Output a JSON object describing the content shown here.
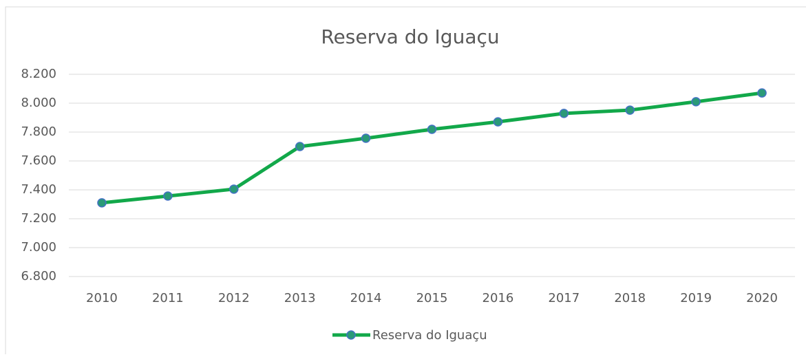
{
  "chart_data": {
    "type": "line",
    "title": "Reserva do Iguaçu",
    "categories": [
      "2010",
      "2011",
      "2012",
      "2013",
      "2014",
      "2015",
      "2016",
      "2017",
      "2018",
      "2019",
      "2020"
    ],
    "series": [
      {
        "name": "Reserva do Iguaçu",
        "color": "#12a84a",
        "marker_color": "#2a9a78",
        "marker_edge": "#4472c4",
        "values": [
          7310,
          7357,
          7405,
          7700,
          7757,
          7819,
          7871,
          7929,
          7952,
          8010,
          8071
        ]
      }
    ],
    "ylim": [
      6800,
      8200
    ],
    "yticks": [
      {
        "value": 6800,
        "label": "6.800"
      },
      {
        "value": 7000,
        "label": "7.000"
      },
      {
        "value": 7200,
        "label": "7.200"
      },
      {
        "value": 7400,
        "label": "7.400"
      },
      {
        "value": 7600,
        "label": "7.600"
      },
      {
        "value": 7800,
        "label": "7.800"
      },
      {
        "value": 8000,
        "label": "8.000"
      },
      {
        "value": 8200,
        "label": "8.200"
      }
    ],
    "grid": true,
    "legend": "bottom"
  }
}
